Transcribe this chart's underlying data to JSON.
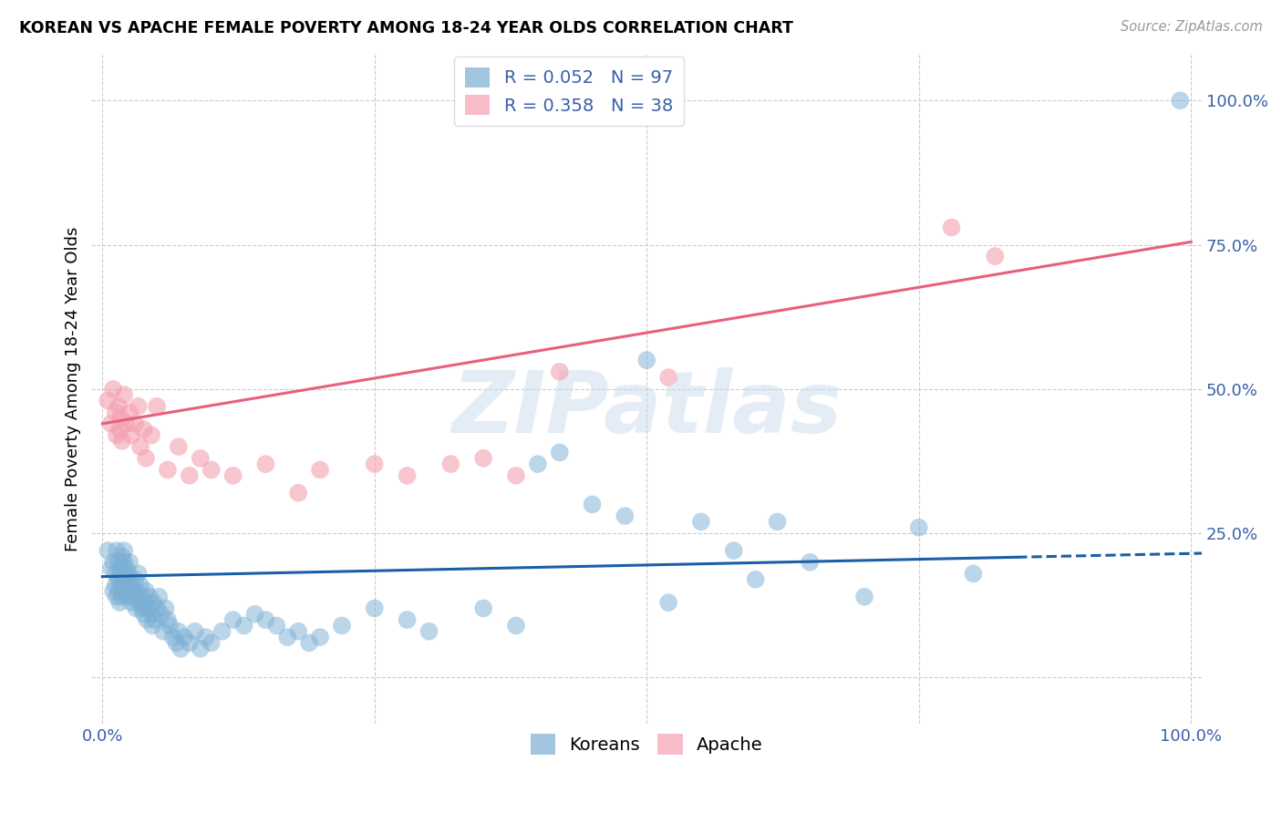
{
  "title": "KOREAN VS APACHE FEMALE POVERTY AMONG 18-24 YEAR OLDS CORRELATION CHART",
  "source": "Source: ZipAtlas.com",
  "ylabel": "Female Poverty Among 18-24 Year Olds",
  "watermark": "ZIPatlas",
  "background_color": "#ffffff",
  "grid_color": "#cccccc",
  "korean_color": "#7bafd4",
  "apache_color": "#f4a0b0",
  "korean_R": 0.052,
  "korean_N": 97,
  "apache_R": 0.358,
  "apache_N": 38,
  "trend_korean_color": "#1a5fa8",
  "trend_apache_color": "#e8607a",
  "xlim": [
    -0.01,
    1.01
  ],
  "ylim": [
    -0.08,
    1.08
  ],
  "xticks": [
    0.0,
    0.25,
    0.5,
    0.75,
    1.0
  ],
  "yticks": [
    0.0,
    0.25,
    0.5,
    0.75,
    1.0
  ],
  "xticklabels": [
    "0.0%",
    "",
    "",
    "",
    "100.0%"
  ],
  "yticklabels": [
    "",
    "25.0%",
    "50.0%",
    "75.0%",
    "100.0%"
  ],
  "korean_x": [
    0.005,
    0.008,
    0.01,
    0.01,
    0.012,
    0.012,
    0.013,
    0.013,
    0.015,
    0.015,
    0.015,
    0.016,
    0.016,
    0.017,
    0.017,
    0.018,
    0.018,
    0.02,
    0.02,
    0.02,
    0.021,
    0.022,
    0.022,
    0.023,
    0.024,
    0.025,
    0.025,
    0.026,
    0.027,
    0.028,
    0.03,
    0.03,
    0.031,
    0.032,
    0.033,
    0.034,
    0.035,
    0.036,
    0.037,
    0.038,
    0.04,
    0.04,
    0.041,
    0.042,
    0.043,
    0.045,
    0.046,
    0.047,
    0.048,
    0.05,
    0.052,
    0.054,
    0.056,
    0.058,
    0.06,
    0.062,
    0.065,
    0.068,
    0.07,
    0.072,
    0.075,
    0.08,
    0.085,
    0.09,
    0.095,
    0.1,
    0.11,
    0.12,
    0.13,
    0.14,
    0.15,
    0.16,
    0.17,
    0.18,
    0.19,
    0.2,
    0.22,
    0.25,
    0.28,
    0.3,
    0.35,
    0.38,
    0.4,
    0.42,
    0.45,
    0.48,
    0.5,
    0.52,
    0.55,
    0.58,
    0.6,
    0.62,
    0.65,
    0.7,
    0.75,
    0.8,
    0.99
  ],
  "korean_y": [
    0.22,
    0.19,
    0.15,
    0.2,
    0.16,
    0.18,
    0.14,
    0.22,
    0.17,
    0.2,
    0.15,
    0.18,
    0.13,
    0.19,
    0.16,
    0.14,
    0.21,
    0.17,
    0.2,
    0.22,
    0.16,
    0.15,
    0.19,
    0.14,
    0.18,
    0.2,
    0.17,
    0.16,
    0.13,
    0.15,
    0.17,
    0.14,
    0.12,
    0.15,
    0.18,
    0.13,
    0.16,
    0.12,
    0.14,
    0.11,
    0.13,
    0.15,
    0.1,
    0.12,
    0.14,
    0.11,
    0.09,
    0.13,
    0.1,
    0.12,
    0.14,
    0.11,
    0.08,
    0.12,
    0.1,
    0.09,
    0.07,
    0.06,
    0.08,
    0.05,
    0.07,
    0.06,
    0.08,
    0.05,
    0.07,
    0.06,
    0.08,
    0.1,
    0.09,
    0.11,
    0.1,
    0.09,
    0.07,
    0.08,
    0.06,
    0.07,
    0.09,
    0.12,
    0.1,
    0.08,
    0.12,
    0.09,
    0.37,
    0.39,
    0.3,
    0.28,
    0.55,
    0.13,
    0.27,
    0.22,
    0.17,
    0.27,
    0.2,
    0.14,
    0.26,
    0.18,
    1.0
  ],
  "apache_x": [
    0.005,
    0.008,
    0.01,
    0.012,
    0.013,
    0.015,
    0.016,
    0.017,
    0.018,
    0.02,
    0.022,
    0.025,
    0.027,
    0.03,
    0.033,
    0.035,
    0.038,
    0.04,
    0.045,
    0.05,
    0.06,
    0.07,
    0.08,
    0.09,
    0.1,
    0.12,
    0.15,
    0.18,
    0.2,
    0.25,
    0.28,
    0.32,
    0.35,
    0.38,
    0.42,
    0.52,
    0.78,
    0.82
  ],
  "apache_y": [
    0.48,
    0.44,
    0.5,
    0.46,
    0.42,
    0.47,
    0.43,
    0.45,
    0.41,
    0.49,
    0.44,
    0.46,
    0.42,
    0.44,
    0.47,
    0.4,
    0.43,
    0.38,
    0.42,
    0.47,
    0.36,
    0.4,
    0.35,
    0.38,
    0.36,
    0.35,
    0.37,
    0.32,
    0.36,
    0.37,
    0.35,
    0.37,
    0.38,
    0.35,
    0.53,
    0.52,
    0.78,
    0.73
  ],
  "k_intercept": 0.175,
  "k_slope": 0.04,
  "a_intercept": 0.44,
  "a_slope": 0.315
}
